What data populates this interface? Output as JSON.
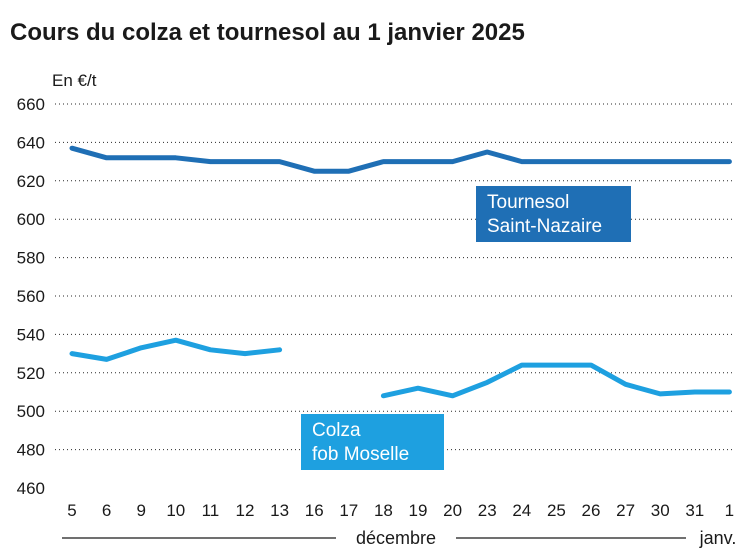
{
  "chart_data": {
    "type": "line",
    "title": "Cours du colza et tournesol au 1 janvier 2025",
    "ylabel": "En €/t",
    "ylim": [
      460,
      660
    ],
    "yticks": [
      460,
      480,
      500,
      520,
      540,
      560,
      580,
      600,
      620,
      640,
      660
    ],
    "categories": [
      "5",
      "6",
      "9",
      "10",
      "11",
      "12",
      "13",
      "16",
      "17",
      "18",
      "19",
      "20",
      "23",
      "24",
      "25",
      "26",
      "27",
      "30",
      "31",
      "1"
    ],
    "month_labels": [
      "décembre",
      "janv."
    ],
    "series": [
      {
        "name": "Tournesol Saint-Nazaire",
        "label_lines": [
          "Tournesol",
          "Saint-Nazaire"
        ],
        "color": "#1f6fb5",
        "values": [
          637,
          632,
          632,
          632,
          630,
          630,
          630,
          625,
          625,
          630,
          630,
          630,
          635,
          630,
          630,
          630,
          630,
          630,
          630,
          630
        ]
      },
      {
        "name": "Colza fob Moselle",
        "label_lines": [
          "Colza",
          "fob Moselle"
        ],
        "color": "#1ea0e0",
        "values": [
          530,
          527,
          533,
          537,
          532,
          530,
          532,
          null,
          null,
          508,
          512,
          508,
          515,
          524,
          524,
          524,
          514,
          509,
          510,
          510
        ]
      }
    ]
  }
}
